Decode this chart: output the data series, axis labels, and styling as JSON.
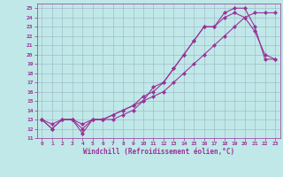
{
  "xlabel": "Windchill (Refroidissement éolien,°C)",
  "bg_color": "#c0e8e8",
  "grid_color": "#a0b8c8",
  "line_color": "#993399",
  "xlim": [
    -0.5,
    23.5
  ],
  "ylim": [
    11,
    25.5
  ],
  "xticks": [
    0,
    1,
    2,
    3,
    4,
    5,
    6,
    7,
    8,
    9,
    10,
    11,
    12,
    13,
    14,
    15,
    16,
    17,
    18,
    19,
    20,
    21,
    22,
    23
  ],
  "yticks": [
    11,
    12,
    13,
    14,
    15,
    16,
    17,
    18,
    19,
    20,
    21,
    22,
    23,
    24,
    25
  ],
  "line1_x": [
    0,
    1,
    2,
    3,
    4,
    5,
    6,
    7,
    8,
    9,
    10,
    11,
    12,
    13,
    14,
    15,
    16,
    17,
    18,
    19,
    20,
    21,
    22,
    23
  ],
  "line1_y": [
    13,
    12,
    13,
    13,
    11.5,
    13,
    13,
    13,
    13.5,
    14,
    15,
    16.5,
    17,
    18.5,
    20,
    21.5,
    23,
    23,
    24.5,
    25,
    25,
    23,
    19.5,
    19.5
  ],
  "line2_x": [
    0,
    1,
    2,
    3,
    4,
    5,
    6,
    7,
    8,
    9,
    10,
    11,
    12,
    13,
    14,
    15,
    16,
    17,
    18,
    19,
    20,
    21,
    22,
    23
  ],
  "line2_y": [
    13,
    12,
    13,
    13,
    12,
    13,
    13,
    13.5,
    14,
    14.5,
    15.5,
    16,
    17,
    18.5,
    20,
    21.5,
    23,
    23,
    24,
    24.5,
    24,
    22.5,
    20,
    19.5
  ],
  "line3_x": [
    0,
    1,
    2,
    3,
    4,
    5,
    6,
    7,
    8,
    9,
    10,
    11,
    12,
    13,
    14,
    15,
    16,
    17,
    18,
    19,
    20,
    21,
    22,
    23
  ],
  "line3_y": [
    13,
    12.5,
    13,
    13,
    12.5,
    13,
    13,
    13.5,
    14,
    14.5,
    15,
    15.5,
    16,
    17,
    18,
    19,
    20,
    21,
    22,
    23,
    24,
    24.5,
    24.5,
    24.5
  ]
}
